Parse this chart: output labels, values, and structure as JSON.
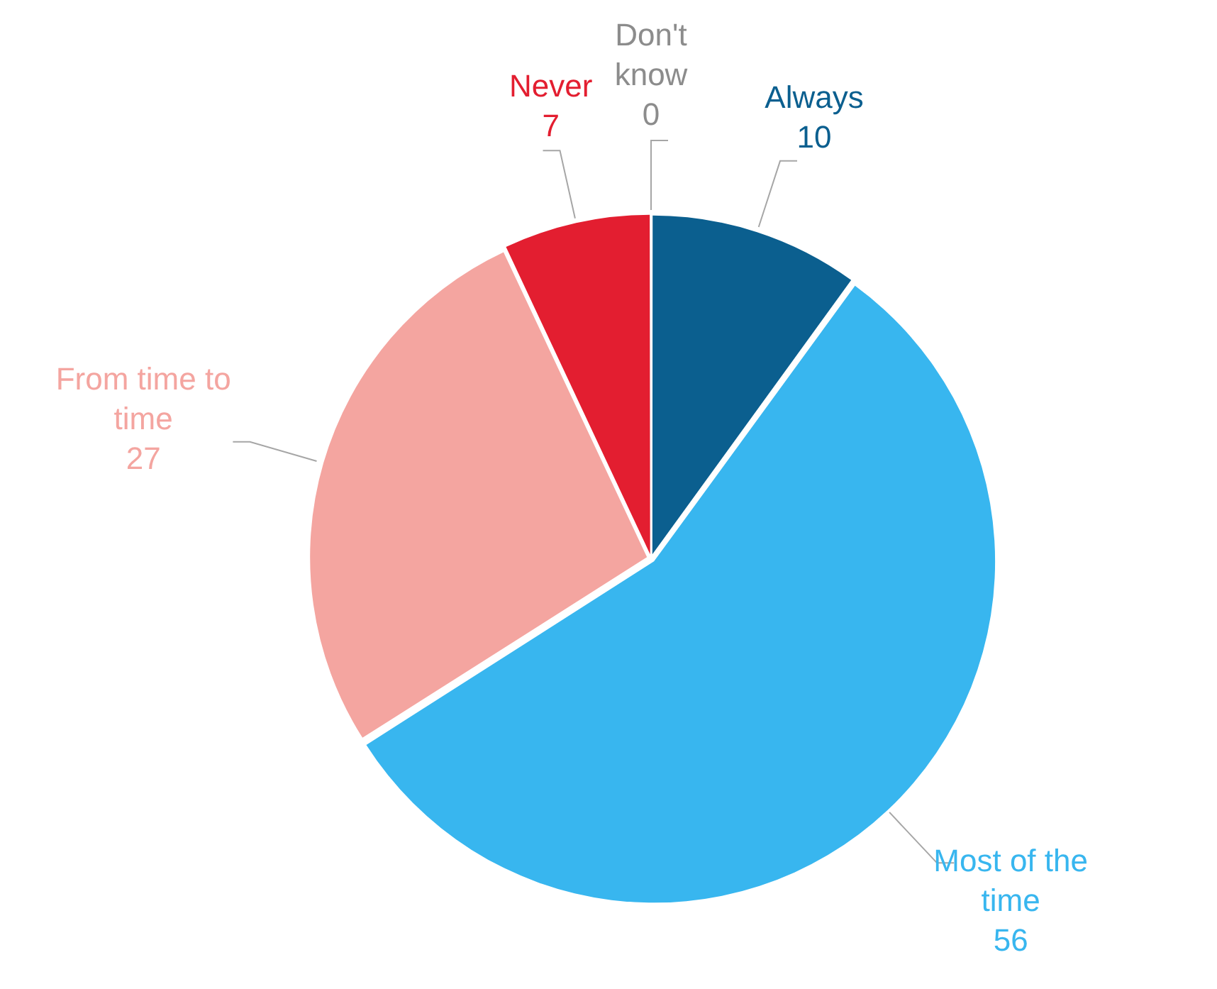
{
  "chart_data": {
    "type": "pie",
    "categories": [
      "Always",
      "Most of the time",
      "From time to time",
      "Never",
      "Don't know"
    ],
    "values": [
      10,
      56,
      27,
      7,
      0
    ],
    "colors": [
      "#0b5f8f",
      "#38b6ef",
      "#f4a5a0",
      "#e31e30",
      "#8c8c8c"
    ],
    "value_labels": [
      "10",
      "56",
      "27",
      "7",
      "0"
    ],
    "legend": false
  }
}
